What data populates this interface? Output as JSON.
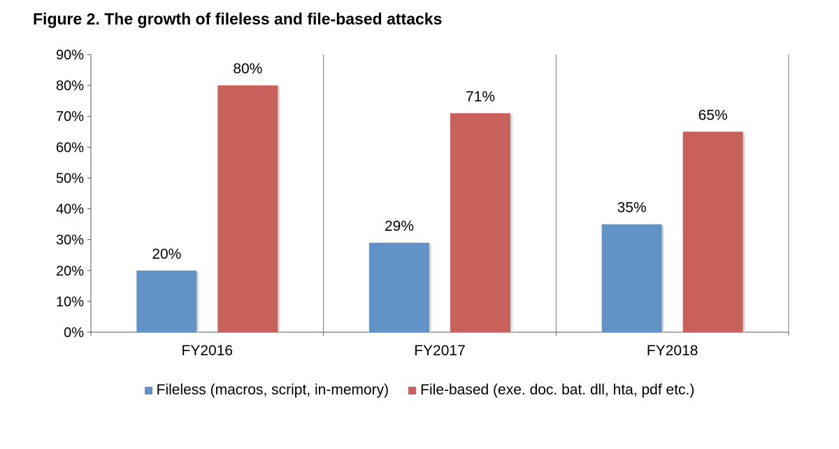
{
  "chart_data": {
    "type": "bar",
    "title": "Figure 2. The growth of fileless and file-based attacks",
    "categories": [
      "FY2016",
      "FY2017",
      "FY2018"
    ],
    "series": [
      {
        "name": "Fileless (macros, script, in-memory)",
        "values": [
          20,
          29,
          35
        ],
        "color": "#6193c7"
      },
      {
        "name": "File-based (exe. doc. bat. dll, hta, pdf etc.)",
        "values": [
          80,
          71,
          65
        ],
        "color": "#c8605c"
      }
    ],
    "value_labels": [
      [
        "20%",
        "29%",
        "35%"
      ],
      [
        "80%",
        "71%",
        "65%"
      ]
    ],
    "y_ticks": [
      "0%",
      "10%",
      "20%",
      "30%",
      "40%",
      "50%",
      "60%",
      "70%",
      "80%",
      "90%"
    ],
    "ylim": [
      0,
      90
    ],
    "grid": false,
    "legend_position": "bottom"
  }
}
